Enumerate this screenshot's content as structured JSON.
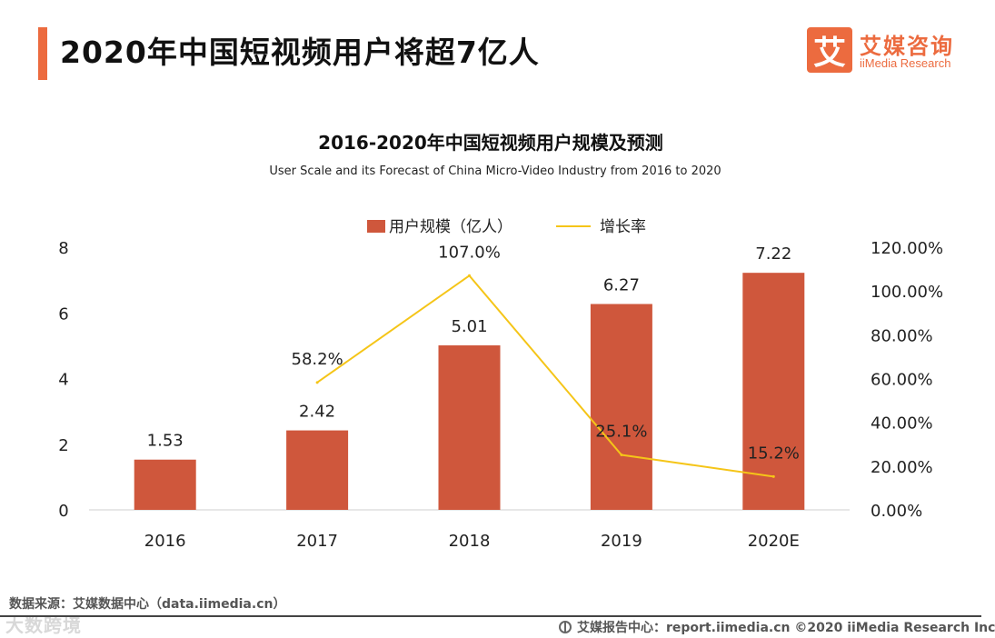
{
  "header": {
    "title": "2020年中国短视频用户将超7亿人",
    "logo_mark": "艾",
    "logo_cn": "艾媒咨询",
    "logo_en": "iiMedia Research"
  },
  "colors": {
    "accent": "#ec6b3f",
    "bar": "#cf573c",
    "line": "#f5c518"
  },
  "chart_data": {
    "type": "bar",
    "title": "2016-2020年中国短视频用户规模及预测",
    "subtitle": "User Scale and its Forecast of China Micro-Video Industry from 2016 to 2020",
    "categories": [
      "2016",
      "2017",
      "2018",
      "2019",
      "2020E"
    ],
    "series": [
      {
        "name": "用户规模（亿人）",
        "type": "bar",
        "axis": "left",
        "values": [
          1.53,
          2.42,
          5.01,
          6.27,
          7.22
        ],
        "labels": [
          "1.53",
          "2.42",
          "5.01",
          "6.27",
          "7.22"
        ]
      },
      {
        "name": "增长率",
        "type": "line",
        "axis": "right",
        "values": [
          null,
          58.2,
          107.0,
          25.1,
          15.2
        ],
        "labels": [
          "",
          "58.2%",
          "107.0%",
          "25.1%",
          "15.2%"
        ]
      }
    ],
    "y_left": {
      "ylim": [
        0,
        8
      ],
      "ticks": [
        "0",
        "2",
        "4",
        "6",
        "8"
      ]
    },
    "y_right": {
      "ylim": [
        0,
        120
      ],
      "ticks": [
        "0.00%",
        "20.00%",
        "40.00%",
        "60.00%",
        "80.00%",
        "100.00%",
        "120.00%"
      ]
    },
    "legend_position": "top-center",
    "grid": false
  },
  "source_note": "数据来源：艾媒数据中心（data.iimedia.cn）",
  "watermark": "大数跨境",
  "footer": "艾媒报告中心：report.iimedia.cn  ©2020  iiMedia Research  Inc"
}
